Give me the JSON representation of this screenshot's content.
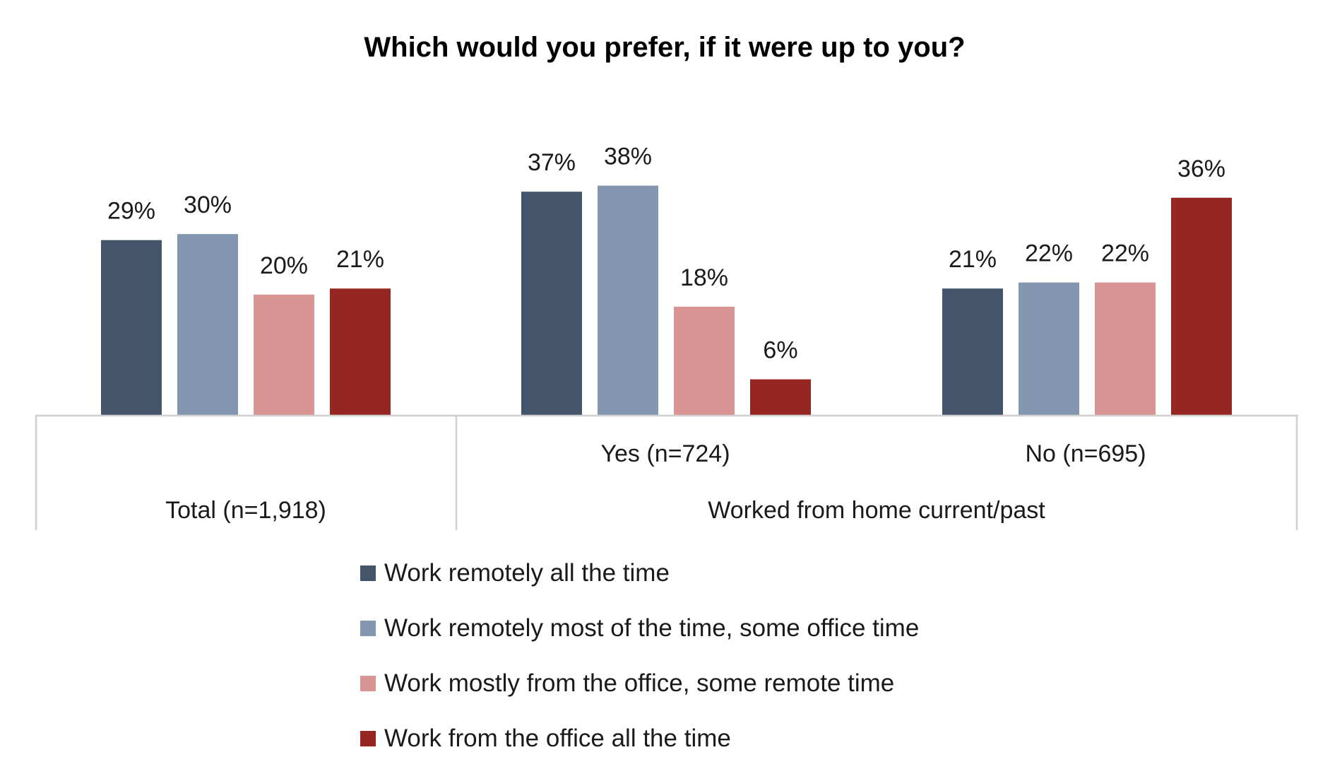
{
  "chart_data": {
    "type": "bar",
    "title": "Which would you prefer, if it were up to you?",
    "categories": [
      "Total (n=1,918)",
      "Yes (n=724)",
      "No (n=695)"
    ],
    "group_label": "Worked from home current/past",
    "series": [
      {
        "name": "Work remotely all the time",
        "color": "#44546a",
        "values": [
          29,
          37,
          21
        ],
        "labels": [
          "29%",
          "37%",
          "21%"
        ]
      },
      {
        "name": "Work remotely most of the time, some office time",
        "color": "#8497b0",
        "values": [
          30,
          38,
          22
        ],
        "labels": [
          "30%",
          "38%",
          "22%"
        ]
      },
      {
        "name": "Work mostly from the office, some remote time",
        "color": "#d99594",
        "values": [
          20,
          18,
          22
        ],
        "labels": [
          "20%",
          "18%",
          "22%"
        ]
      },
      {
        "name": "Work from the office all the time",
        "color": "#962622",
        "values": [
          21,
          6,
          36
        ],
        "labels": [
          "21%",
          "6%",
          "36%"
        ]
      }
    ],
    "ylim": [
      0,
      64
    ],
    "grid": false,
    "legend_position": "bottom"
  }
}
